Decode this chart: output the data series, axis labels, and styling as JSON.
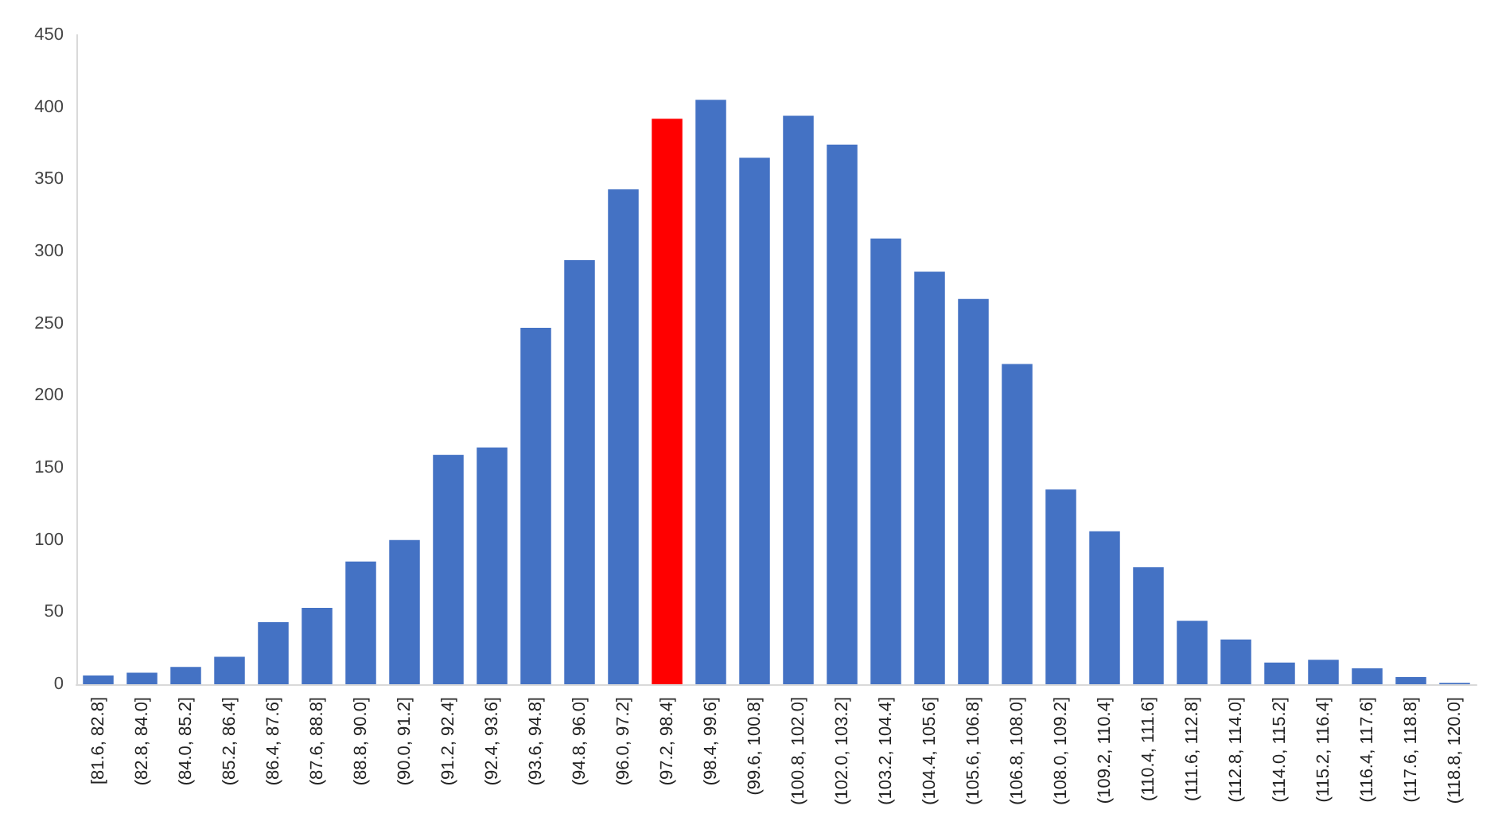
{
  "chart_data": {
    "type": "bar",
    "categories": [
      "[81.6, 82.8]",
      "(82.8, 84.0]",
      "(84.0, 85.2]",
      "(85.2, 86.4]",
      "(86.4, 87.6]",
      "(87.6, 88.8]",
      "(88.8, 90.0]",
      "(90.0, 91.2]",
      "(91.2, 92.4]",
      "(92.4, 93.6]",
      "(93.6, 94.8]",
      "(94.8, 96.0]",
      "(96.0, 97.2]",
      "(97.2, 98.4]",
      "(98.4, 99.6]",
      "(99.6, 100.8]",
      "(100.8, 102.0]",
      "(102.0, 103.2]",
      "(103.2, 104.4]",
      "(104.4, 105.6]",
      "(105.6, 106.8]",
      "(106.8, 108.0]",
      "(108.0, 109.2]",
      "(109.2, 110.4]",
      "(110.4, 111.6]",
      "(111.6, 112.8]",
      "(112.8, 114.0]",
      "(114.0, 115.2]",
      "(115.2, 116.4]",
      "(116.4, 117.6]",
      "(117.6, 118.8]",
      "(118.8, 120.0]"
    ],
    "values": [
      6,
      8,
      12,
      19,
      43,
      53,
      85,
      100,
      159,
      164,
      247,
      294,
      343,
      392,
      405,
      365,
      394,
      374,
      309,
      286,
      267,
      222,
      135,
      106,
      81,
      44,
      31,
      15,
      17,
      11,
      5,
      1
    ],
    "colors": [
      "#4472c4",
      "#4472c4",
      "#4472c4",
      "#4472c4",
      "#4472c4",
      "#4472c4",
      "#4472c4",
      "#4472c4",
      "#4472c4",
      "#4472c4",
      "#4472c4",
      "#4472c4",
      "#4472c4",
      "#ff0000",
      "#4472c4",
      "#4472c4",
      "#4472c4",
      "#4472c4",
      "#4472c4",
      "#4472c4",
      "#4472c4",
      "#4472c4",
      "#4472c4",
      "#4472c4",
      "#4472c4",
      "#4472c4",
      "#4472c4",
      "#4472c4",
      "#4472c4",
      "#4472c4",
      "#4472c4",
      "#4472c4"
    ],
    "ylim": [
      0,
      450
    ],
    "yticks": [
      0,
      50,
      100,
      150,
      200,
      250,
      300,
      350,
      400,
      450
    ],
    "grid": false
  }
}
